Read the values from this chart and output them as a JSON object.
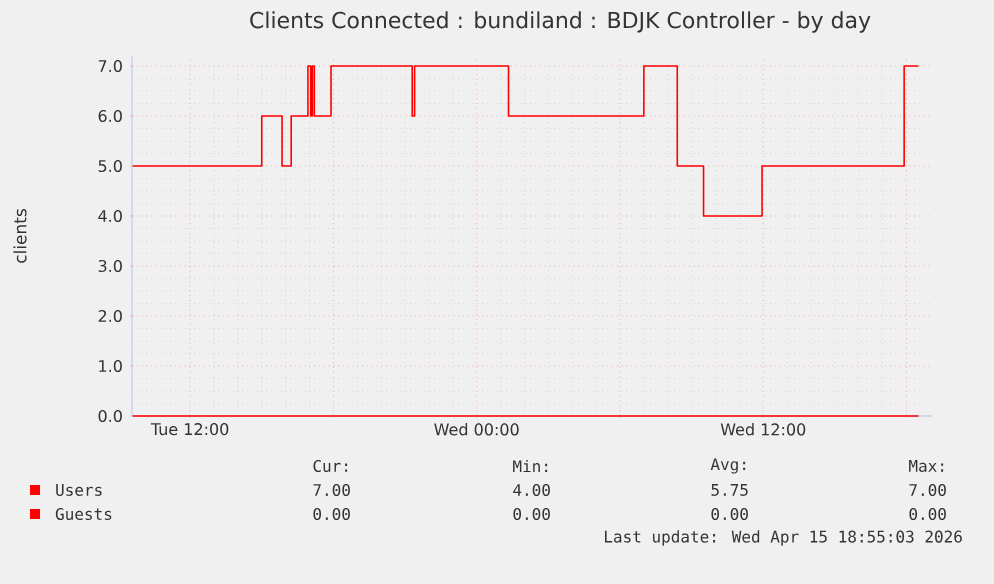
{
  "chart_data": {
    "type": "step",
    "title": "Clients Connected : bundiland : BDJK Controller - by day",
    "ylabel": "clients",
    "xlim": [
      "2026-04-14T09:34",
      "2026-04-15T19:04"
    ],
    "ylim": [
      0,
      7.2
    ],
    "xticks": [
      {
        "value": "2026-04-14T12:00",
        "label": "Tue 12:00"
      },
      {
        "value": "2026-04-14T18:00",
        "label": null
      },
      {
        "value": "2026-04-15T00:00",
        "label": "Wed 00:00"
      },
      {
        "value": "2026-04-15T06:00",
        "label": null
      },
      {
        "value": "2026-04-15T12:00",
        "label": "Wed 12:00"
      },
      {
        "value": "2026-04-15T18:00",
        "label": null
      }
    ],
    "yticks": [
      {
        "value": 0,
        "label": "0.0"
      },
      {
        "value": 1,
        "label": "1.0"
      },
      {
        "value": 2,
        "label": "2.0"
      },
      {
        "value": 3,
        "label": "3.0"
      },
      {
        "value": 4,
        "label": "4.0"
      },
      {
        "value": 5,
        "label": "5.0"
      },
      {
        "value": 6,
        "label": "6.0"
      },
      {
        "value": 7,
        "label": "7.0"
      }
    ],
    "grid": true,
    "legend": "bottom",
    "marker": "none",
    "line_style": "solid",
    "series": [
      {
        "name": "Users",
        "color": "#ff0000",
        "x": [
          "2026-04-14T09:36",
          "2026-04-14T15:00",
          "2026-04-14T15:51",
          "2026-04-14T16:14",
          "2026-04-14T16:56",
          "2026-04-14T17:03",
          "2026-04-14T17:07",
          "2026-04-14T17:12",
          "2026-04-14T17:54",
          "2026-04-14T21:18",
          "2026-04-14T21:24",
          "2026-04-15T01:20",
          "2026-04-15T07:00",
          "2026-04-15T08:24",
          "2026-04-15T09:30",
          "2026-04-15T11:57",
          "2026-04-15T17:54",
          "2026-04-15T18:30"
        ],
        "values": [
          5,
          6,
          5,
          6,
          7,
          6,
          7,
          6,
          7,
          6,
          7,
          6,
          7,
          5,
          4,
          5,
          7,
          7
        ]
      },
      {
        "name": "Guests",
        "color": "#ff0000",
        "x": [
          "2026-04-14T09:36",
          "2026-04-15T18:30"
        ],
        "values": [
          0,
          0
        ]
      }
    ],
    "annotations": [
      "Cur:",
      "Min:",
      "Avg:",
      "Max:",
      "7.00",
      "4.00",
      "5.75",
      "7.00",
      "0.00",
      "0.00",
      "0.00",
      "0.00",
      "Last update: Wed Apr 15 18:55:03 2026"
    ]
  }
}
